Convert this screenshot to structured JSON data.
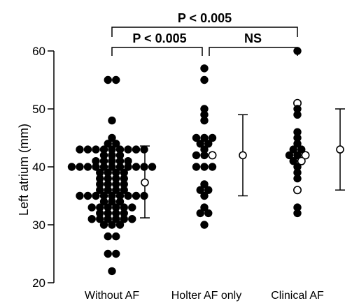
{
  "chart_data": {
    "type": "scatter",
    "title": "",
    "xlabel": "",
    "ylabel": "Left atrium (mm)",
    "ylim": [
      20,
      60
    ],
    "yticks": [
      20,
      30,
      40,
      50,
      60
    ],
    "categories": [
      "Without AF",
      "Holter AF only",
      "Clinical AF"
    ],
    "grid": false,
    "marker_colors": {
      "filled": "#000000",
      "open": "#ffffff"
    },
    "groups": [
      {
        "category": "Without AF",
        "filled_values": [
          55,
          55,
          48,
          45,
          44,
          44,
          43,
          43,
          43,
          43,
          43,
          43,
          43,
          43,
          43,
          42,
          42,
          42,
          41,
          41,
          41,
          41,
          41,
          40,
          40,
          40,
          40,
          40,
          40,
          40,
          40,
          40,
          40,
          40,
          39,
          39,
          39,
          39,
          38,
          38,
          38,
          38,
          37,
          37,
          37,
          37,
          36,
          36,
          36,
          36,
          35,
          35,
          35,
          35,
          35,
          35,
          35,
          35,
          35,
          34,
          34,
          34,
          33,
          33,
          33,
          33,
          33,
          33,
          32,
          32,
          32,
          32,
          31,
          31,
          31,
          31,
          31,
          31,
          30,
          30,
          30,
          28,
          28,
          25,
          25,
          22
        ],
        "mean": 37.3,
        "sd_range": [
          31.2,
          43.6
        ]
      },
      {
        "category": "Holter AF only",
        "filled_values": [
          57,
          55,
          50,
          49,
          48,
          45,
          45,
          45,
          44,
          44,
          43,
          42,
          42,
          40,
          40,
          40,
          37,
          36,
          36,
          35,
          33,
          32,
          32,
          30
        ],
        "open_values": [
          42
        ],
        "mean": 42,
        "sd_range": [
          35,
          49
        ]
      },
      {
        "category": "Clinical AF",
        "filled_values": [
          60,
          50,
          49,
          46,
          45,
          44,
          43,
          43,
          42,
          42,
          41,
          40,
          39,
          38,
          33,
          32
        ],
        "open_values": [
          51,
          42,
          41,
          36
        ],
        "mean": 43,
        "sd_range": [
          36,
          50
        ]
      }
    ],
    "annotations": [
      {
        "label": "P < 0.005",
        "from": "Without AF",
        "to": "Clinical AF"
      },
      {
        "label": "P < 0.005",
        "from": "Without AF",
        "to": "Holter AF only"
      },
      {
        "label": "NS",
        "from": "Holter AF only",
        "to": "Clinical AF"
      }
    ]
  }
}
